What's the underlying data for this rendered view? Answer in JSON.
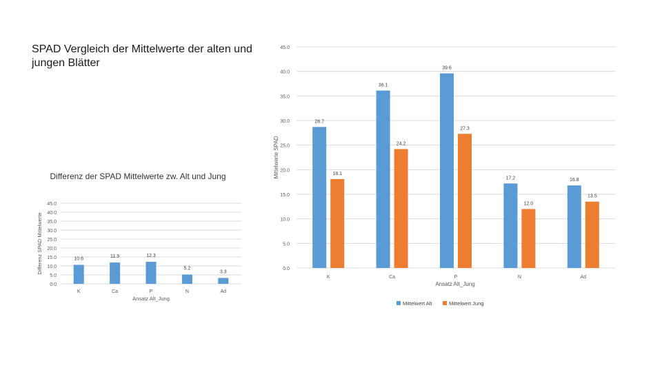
{
  "page": {
    "title": "SPAD Vergleich der Mittelwerte der alten und jungen Blätter"
  },
  "chart_data": [
    {
      "type": "bar",
      "title": "Differenz der SPAD Mittelwerte zw. Alt und Jung",
      "xlabel": "Ansatz Alt_Jung",
      "ylabel": "Differenz SPAD Mittelwerte",
      "categories": [
        "K",
        "Ca",
        "P",
        "N",
        "Ad"
      ],
      "series": [
        {
          "values": [
            10.6,
            11.9,
            12.3,
            5.2,
            3.3
          ],
          "color": "#5b9bd5"
        }
      ],
      "data_labels": [
        "10.6",
        "11.9",
        "12.3",
        "5.2",
        "3.3"
      ],
      "ylim": [
        0,
        45
      ],
      "y_ticks": [
        "0.0",
        "5.0",
        "10.0",
        "15.0",
        "20.0",
        "25.0",
        "30.0",
        "35.0",
        "40.0",
        "45.0"
      ],
      "grid": true,
      "legend": "none"
    },
    {
      "type": "bar",
      "title": "",
      "xlabel": "Ansatz Alt_Jung",
      "ylabel": "Mittelwerte SPAD",
      "categories": [
        "K",
        "Ca",
        "P",
        "N",
        "Ad"
      ],
      "series": [
        {
          "name": "Mittelwert Alt",
          "values": [
            28.7,
            36.1,
            39.6,
            17.2,
            16.8
          ],
          "color": "#5b9bd5",
          "data_labels": [
            "28.7",
            "36.1",
            "39.6",
            "17.2",
            "16.8"
          ]
        },
        {
          "name": "Mittelwert Jung",
          "values": [
            18.1,
            24.2,
            27.3,
            12.0,
            13.5
          ],
          "color": "#ed7d31",
          "data_labels": [
            "18.1",
            "24.2",
            "27.3",
            "12.0",
            "13.5"
          ]
        }
      ],
      "ylim": [
        0,
        45
      ],
      "y_ticks": [
        "0.0",
        "5.0",
        "10.0",
        "15.0",
        "20.0",
        "25.0",
        "30.0",
        "35.0",
        "40.0",
        "45.0"
      ],
      "grid": true,
      "legend": "bottom"
    }
  ]
}
